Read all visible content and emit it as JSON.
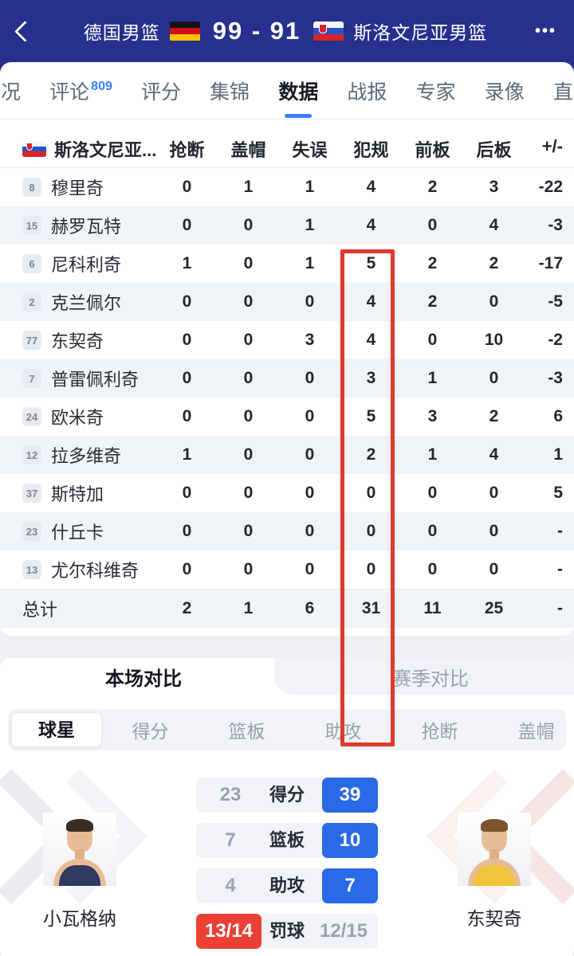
{
  "colors": {
    "header_bg": "#27308d",
    "accent_blue": "#2a6ae9",
    "accent_red": "#ea4134",
    "highlight_box_red": "#e0392e",
    "badge_blue": "#3a7cf8"
  },
  "header": {
    "home_team": "德国男篮",
    "score": "99 - 91",
    "away_team": "斯洛文尼亚男篮",
    "home_flag": "germany-flag",
    "away_flag": "slovenia-flag"
  },
  "nav_tabs": {
    "items": [
      {
        "label": "赛况",
        "active": false
      },
      {
        "label": "评论",
        "badge": "809",
        "active": false
      },
      {
        "label": "评分",
        "active": false
      },
      {
        "label": "集锦",
        "active": false
      },
      {
        "label": "数据",
        "active": true
      },
      {
        "label": "战报",
        "active": false
      },
      {
        "label": "专家",
        "active": false
      },
      {
        "label": "录像",
        "active": false
      },
      {
        "label": "直播",
        "active": false
      }
    ]
  },
  "stats_table": {
    "team_label": "斯洛文尼亚...",
    "columns": [
      "抢断",
      "盖帽",
      "失误",
      "犯规",
      "前板",
      "后板",
      "+/-"
    ],
    "highlighted_column": "犯规",
    "rows": [
      {
        "num": "8",
        "name": "穆里奇",
        "values": [
          "0",
          "1",
          "1",
          "4",
          "2",
          "3",
          "-22"
        ]
      },
      {
        "num": "15",
        "name": "赫罗瓦特",
        "values": [
          "0",
          "0",
          "1",
          "4",
          "0",
          "4",
          "-3"
        ]
      },
      {
        "num": "6",
        "name": "尼科利奇",
        "values": [
          "1",
          "0",
          "1",
          "5",
          "2",
          "2",
          "-17"
        ]
      },
      {
        "num": "2",
        "name": "克兰佩尔",
        "values": [
          "0",
          "0",
          "0",
          "4",
          "2",
          "0",
          "-5"
        ]
      },
      {
        "num": "77",
        "name": "东契奇",
        "values": [
          "0",
          "0",
          "3",
          "4",
          "0",
          "10",
          "-2"
        ]
      },
      {
        "num": "7",
        "name": "普雷佩利奇",
        "values": [
          "0",
          "0",
          "0",
          "3",
          "1",
          "0",
          "-3"
        ]
      },
      {
        "num": "24",
        "name": "欧米奇",
        "values": [
          "0",
          "0",
          "0",
          "5",
          "3",
          "2",
          "6"
        ]
      },
      {
        "num": "12",
        "name": "拉多维奇",
        "values": [
          "1",
          "0",
          "0",
          "2",
          "1",
          "4",
          "1"
        ]
      },
      {
        "num": "37",
        "name": "斯特加",
        "values": [
          "0",
          "0",
          "0",
          "0",
          "0",
          "0",
          "5"
        ]
      },
      {
        "num": "23",
        "name": "什丘卡",
        "values": [
          "0",
          "0",
          "0",
          "0",
          "0",
          "0",
          "-"
        ]
      },
      {
        "num": "13",
        "name": "尤尔科维奇",
        "values": [
          "0",
          "0",
          "0",
          "0",
          "0",
          "0",
          "-"
        ]
      }
    ],
    "total": {
      "label": "总计",
      "values": [
        "2",
        "1",
        "6",
        "31",
        "11",
        "25",
        "-"
      ]
    }
  },
  "comparison": {
    "tabs": [
      {
        "label": "本场对比",
        "active": true
      },
      {
        "label": "赛季对比",
        "active": false
      }
    ],
    "sub_tabs": [
      {
        "label": "球星",
        "active": true
      },
      {
        "label": "得分",
        "active": false
      },
      {
        "label": "篮板",
        "active": false
      },
      {
        "label": "助攻",
        "active": false
      },
      {
        "label": "抢断",
        "active": false
      },
      {
        "label": "盖帽",
        "active": false
      }
    ],
    "left_player": {
      "name": "小瓦格纳"
    },
    "right_player": {
      "name": "东契奇"
    },
    "stat_rows": [
      {
        "left": "23",
        "label": "得分",
        "right": "39",
        "winner": "right"
      },
      {
        "left": "7",
        "label": "篮板",
        "right": "10",
        "winner": "right"
      },
      {
        "left": "4",
        "label": "助攻",
        "right": "7",
        "winner": "right"
      },
      {
        "left": "13/14",
        "label": "罚球",
        "right": "12/15",
        "winner": "left"
      }
    ]
  }
}
